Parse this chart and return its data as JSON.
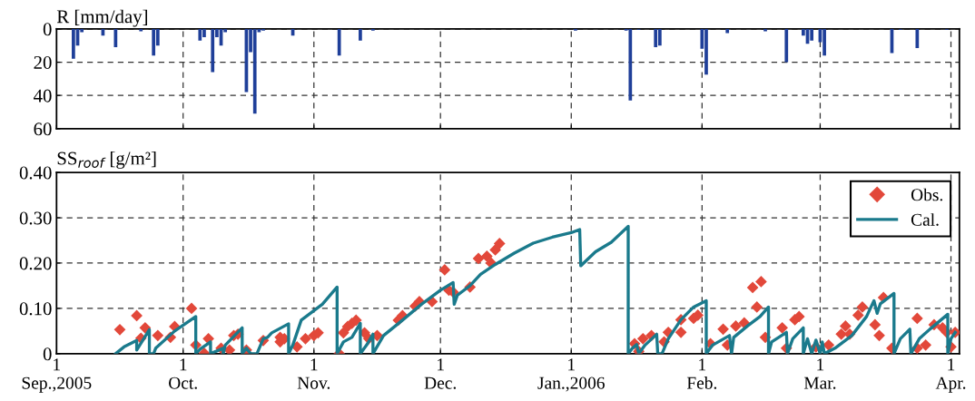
{
  "chart_data": [
    {
      "type": "bar",
      "ylabel": "R [mm/day]",
      "tick_labels": "y",
      "grid": true,
      "xlim": [
        "2005-09-01",
        "2006-04-03"
      ],
      "xticks": [
        {
          "value": "2005-09-01",
          "label": null
        },
        {
          "value": "2005-10-01",
          "label": null
        },
        {
          "value": "2005-11-01",
          "label": null
        },
        {
          "value": "2005-12-01",
          "label": null
        },
        {
          "value": "2006-01-01",
          "label": null
        },
        {
          "value": "2006-02-01",
          "label": null
        },
        {
          "value": "2006-03-01",
          "label": null
        },
        {
          "value": "2006-04-01",
          "label": null
        }
      ],
      "ylim": [
        60,
        0
      ],
      "yticks": [
        0,
        20,
        40,
        60
      ],
      "series": [
        {
          "color": "#1f3f99",
          "x": [
            "2005-09-05",
            "2005-09-06",
            "2005-09-07",
            "2005-09-12",
            "2005-09-15",
            "2005-09-21",
            "2005-09-24",
            "2005-09-25",
            "2005-10-05",
            "2005-10-06",
            "2005-10-08",
            "2005-10-09",
            "2005-10-10",
            "2005-10-11",
            "2005-10-16",
            "2005-10-17",
            "2005-10-18",
            "2005-10-19",
            "2005-10-20",
            "2005-10-27",
            "2005-11-07",
            "2005-11-12",
            "2005-11-15",
            "2006-01-02",
            "2006-01-14",
            "2006-01-15",
            "2006-01-17",
            "2006-01-21",
            "2006-01-22",
            "2006-02-01",
            "2006-02-02",
            "2006-02-07",
            "2006-02-16",
            "2006-02-21",
            "2006-02-25",
            "2006-02-26",
            "2006-02-27",
            "2006-03-01",
            "2006-03-02",
            "2006-03-18",
            "2006-03-20",
            "2006-03-24",
            "2006-03-31"
          ],
          "values": [
            18,
            10,
            2,
            4,
            11,
            1.5,
            16,
            10,
            7,
            5,
            26,
            5,
            10,
            2,
            38,
            14,
            51,
            2,
            1,
            4,
            16,
            7,
            1,
            1,
            1,
            43,
            0.5,
            11,
            10,
            12,
            27.5,
            2.5,
            1.5,
            20,
            4,
            9,
            7,
            8,
            16,
            14.5,
            0.5,
            11.5,
            0.5
          ]
        }
      ]
    },
    {
      "type": "line",
      "ylabel": "SS$_{roof}$ [g/m²]",
      "grid": true,
      "legend": "top right",
      "xlim": [
        "2005-09-01",
        "2006-04-03"
      ],
      "xticks": [
        {
          "value": "2005-09-01",
          "label": "1\nSep.,2005"
        },
        {
          "value": "2005-10-01",
          "label": "1\nOct."
        },
        {
          "value": "2005-11-01",
          "label": "1\nNov."
        },
        {
          "value": "2005-12-01",
          "label": "1\nDec."
        },
        {
          "value": "2006-01-01",
          "label": "1\nJan.,2006"
        },
        {
          "value": "2006-02-01",
          "label": "1\nFeb."
        },
        {
          "value": "2006-03-01",
          "label": "1\nMar."
        },
        {
          "value": "2006-04-01",
          "label": "1\nApr."
        }
      ],
      "ylim": [
        0,
        0.4
      ],
      "yticks": [
        0,
        {
          "value": 0.1,
          "label": "0.10"
        },
        {
          "value": 0.2,
          "label": "0.20"
        },
        {
          "value": 0.3,
          "label": "0.30"
        },
        {
          "value": 0.4,
          "label": "0.40"
        }
      ],
      "series": [
        {
          "name": "Obs.",
          "type": "scatter",
          "marker": "diamond",
          "color": "#e2483a",
          "x": [
            "2005-09-16",
            "2005-09-20",
            "2005-09-22",
            "2005-09-21",
            "2005-09-25",
            "2005-09-28",
            "2005-09-29",
            "2005-10-03",
            "2005-10-04",
            "2005-10-06",
            "2005-10-07",
            "2005-10-10",
            "2005-10-12",
            "2005-10-13",
            "2005-10-14",
            "2005-10-16",
            "2005-10-20",
            "2005-10-24",
            "2005-10-24",
            "2005-10-25",
            "2005-10-28",
            "2005-10-30",
            "2005-11-01",
            "2005-11-02",
            "2005-11-07",
            "2005-11-08",
            "2005-11-09",
            "2005-11-10",
            "2005-11-11",
            "2005-11-13",
            "2005-11-14",
            "2005-11-16",
            "2005-11-21",
            "2005-11-22",
            "2005-11-25",
            "2005-11-26",
            "2005-11-29",
            "2005-12-02",
            "2005-12-03",
            "2005-12-04",
            "2005-12-08",
            "2005-12-10",
            "2005-12-12",
            "2005-12-13",
            "2005-12-14",
            "2005-12-15",
            "2006-01-16",
            "2006-01-17",
            "2006-01-18",
            "2006-01-20",
            "2006-01-23",
            "2006-01-24",
            "2006-01-27",
            "2006-01-27",
            "2006-01-30",
            "2006-01-31",
            "2006-02-03",
            "2006-02-06",
            "2006-02-07",
            "2006-02-09",
            "2006-02-11",
            "2006-02-13",
            "2006-02-15",
            "2006-02-14",
            "2006-02-16",
            "2006-02-20",
            "2006-02-21",
            "2006-02-23",
            "2006-02-24",
            "2006-02-28",
            "2006-03-03",
            "2006-03-06",
            "2006-03-07",
            "2006-03-08",
            "2006-03-10",
            "2006-03-11",
            "2006-03-14",
            "2006-03-15",
            "2006-03-16",
            "2006-03-18",
            "2006-03-24",
            "2006-03-24",
            "2006-03-26",
            "2006-03-28",
            "2006-03-30",
            "2006-03-31",
            "2006-04-01",
            "2006-04-02"
          ],
          "values": [
            0.053,
            0.084,
            0.057,
            0.034,
            0.04,
            0.036,
            0.06,
            0.1,
            0.019,
            0.001,
            0.033,
            0.012,
            0.008,
            0.04,
            0.043,
            0.008,
            0.029,
            0.026,
            0.036,
            0.033,
            0.015,
            0.033,
            0.04,
            0.046,
            0.0,
            0.046,
            0.06,
            0.067,
            0.074,
            0.046,
            0.033,
            0.04,
            0.074,
            0.084,
            0.105,
            0.115,
            0.115,
            0.185,
            0.14,
            0.136,
            0.147,
            0.21,
            0.215,
            0.2,
            0.229,
            0.243,
            0.022,
            0.005,
            0.033,
            0.04,
            0.026,
            0.047,
            0.047,
            0.075,
            0.078,
            0.085,
            0.022,
            0.054,
            0.019,
            0.061,
            0.068,
            0.146,
            0.159,
            0.103,
            0.036,
            0.057,
            0.012,
            0.075,
            0.082,
            0.015,
            0.019,
            0.043,
            0.061,
            0.043,
            0.085,
            0.103,
            0.064,
            0.04,
            0.124,
            0.012,
            0.078,
            0.012,
            0.019,
            0.064,
            0.057,
            0.047,
            0.015,
            0.047
          ]
        },
        {
          "name": "Cal.",
          "type": "line",
          "marker": "none",
          "line_style": "solid",
          "color": "#1a7a8c",
          "x": [
            "2005-09-15",
            "2005-09-17",
            "2005-09-20",
            "2005-09-20",
            "2005-09-23",
            "2005-09-23",
            "2005-09-24",
            "2005-09-24T12:00",
            "2005-09-29",
            "2005-10-04",
            "2005-10-04",
            "2005-10-05",
            "2005-10-07T12:00",
            "2005-10-07T12:00",
            "2005-10-10T12:00",
            "2005-10-10T12:00",
            "2005-10-11",
            "2005-10-15",
            "2005-10-15",
            "2005-10-16",
            "2005-10-17",
            "2005-10-18T12:00",
            "2005-10-20",
            "2005-10-21",
            "2005-10-22",
            "2005-10-26",
            "2005-10-26",
            "2005-10-27",
            "2005-10-29",
            "2005-10-31",
            "2005-11-03",
            "2005-11-06T12:00",
            "2005-11-06T12:00",
            "2005-11-08",
            "2005-11-10",
            "2005-11-12",
            "2005-11-12",
            "2005-11-13T12:00",
            "2005-11-15",
            "2005-11-15",
            "2005-11-15T18:00",
            "2005-11-17T12:00",
            "2005-11-22",
            "2005-11-26T12:00",
            "2005-12-01",
            "2005-12-04",
            "2005-12-04T06:00",
            "2005-12-05",
            "2005-12-08",
            "2005-12-10T12:00",
            "2005-12-14",
            "2005-12-18T12:00",
            "2005-12-23",
            "2005-12-27T12:00",
            "2006-01-01",
            "2006-01-03",
            "2006-01-03T06:00",
            "2006-01-06T18:00",
            "2006-01-10T12:00",
            "2006-01-14T12:00",
            "2006-01-14T12:00",
            "2006-01-15T12:00",
            "2006-01-16T12:00",
            "2006-01-17",
            "2006-01-18T12:00",
            "2006-01-21T06:00",
            "2006-01-21T12:00",
            "2006-01-22T12:00",
            "2006-01-24",
            "2006-01-27",
            "2006-01-30",
            "2006-02-02",
            "2006-02-02",
            "2006-02-03T12:00",
            "2006-02-07T12:00",
            "2006-02-08",
            "2006-02-08T12:00",
            "2006-02-11T18:00",
            "2006-02-14T18:00",
            "2006-02-16T18:00",
            "2006-02-16T18:00",
            "2006-02-17T12:00",
            "2006-02-21",
            "2006-02-21T06:00",
            "2006-02-22T12:00",
            "2006-02-25",
            "2006-02-25",
            "2006-02-26",
            "2006-02-27",
            "2006-02-28",
            "2006-03-01",
            "2006-03-01T12:00",
            "2006-03-02",
            "2006-03-04T12:00",
            "2006-03-08T12:00",
            "2006-03-12",
            "2006-03-13T18:00",
            "2006-03-14T12:00",
            "2006-03-15T06:00",
            "2006-03-18T12:00",
            "2006-03-18T12:00",
            "2006-03-20",
            "2006-03-22T06:00",
            "2006-03-22T12:00",
            "2006-03-24T12:00",
            "2006-03-27",
            "2006-03-31T06:00",
            "2006-03-31T06:00",
            "2006-04-01",
            "2006-04-02"
          ],
          "values": [
            0,
            0.015,
            0.029,
            0.008,
            0.053,
            0,
            0,
            0.012,
            0.05,
            0.082,
            0,
            0.01,
            0.026,
            0,
            0.012,
            0,
            0.019,
            0.057,
            0,
            0.012,
            0,
            0,
            0.033,
            0.036,
            0.046,
            0.066,
            0,
            0.019,
            0.074,
            0.088,
            0.109,
            0.147,
            0,
            0.026,
            0.036,
            0.067,
            0,
            0.019,
            0.043,
            0,
            0.012,
            0.04,
            0.074,
            0.109,
            0.14,
            0.157,
            0.109,
            0.129,
            0.15,
            0.175,
            0.197,
            0.222,
            0.244,
            0.257,
            0.267,
            0.274,
            0.194,
            0.225,
            0.246,
            0.281,
            0,
            0.012,
            0.02,
            0,
            0.019,
            0.043,
            0,
            0,
            0.033,
            0.075,
            0.103,
            0.117,
            0,
            0.019,
            0.04,
            0,
            0.036,
            0.061,
            0.082,
            0.103,
            0,
            0.026,
            0.047,
            0,
            0.033,
            0.057,
            0,
            0.033,
            0,
            0.03,
            0,
            0.026,
            0,
            0.012,
            0.04,
            0.082,
            0.117,
            0.089,
            0.11,
            0.133,
            0,
            0.033,
            0.054,
            0,
            0.033,
            0.054,
            0.087,
            0,
            0.033,
            0.047
          ]
        }
      ]
    }
  ]
}
